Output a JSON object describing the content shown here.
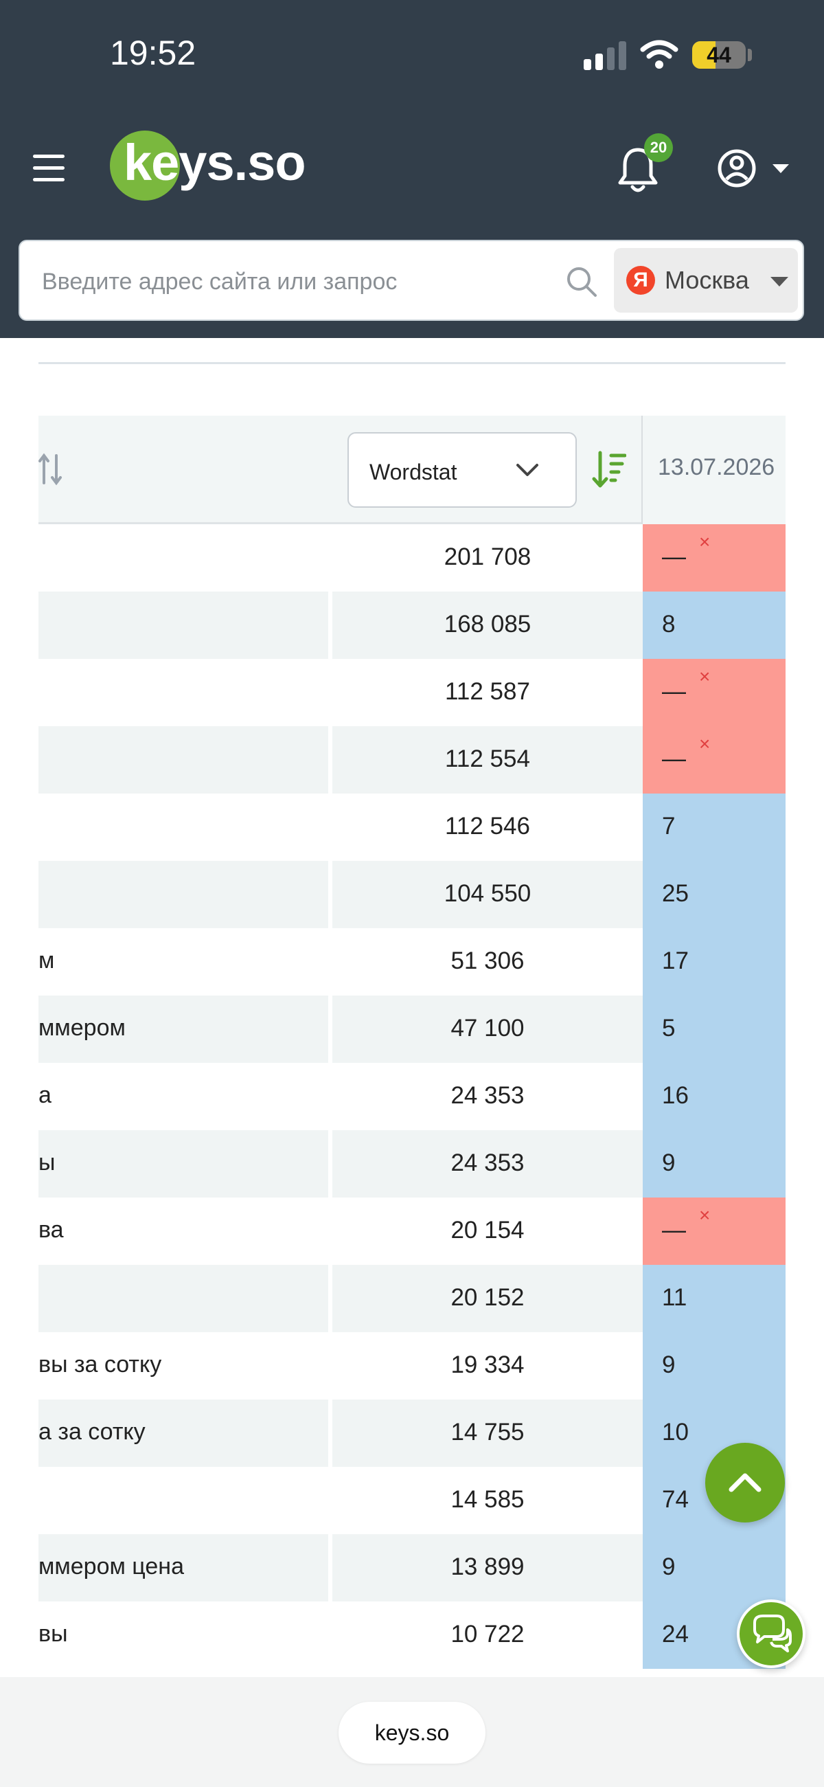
{
  "status_bar": {
    "time": "19:52",
    "battery": "44"
  },
  "header": {
    "logo_text": "keys.so",
    "notifications_count": "20"
  },
  "search": {
    "placeholder": "Введите адрес сайта или запрос",
    "region_badge": "Я",
    "region": "Москва"
  },
  "table": {
    "volume_select": "Wordstat",
    "date_column": "13.07.2026",
    "rows": [
      {
        "keyword": "",
        "volume": "201 708",
        "position": "—",
        "missing": true
      },
      {
        "keyword": "",
        "volume": "168 085",
        "position": "8",
        "missing": false
      },
      {
        "keyword": "",
        "volume": "112 587",
        "position": "—",
        "missing": true
      },
      {
        "keyword": "",
        "volume": "112 554",
        "position": "—",
        "missing": true
      },
      {
        "keyword": "",
        "volume": "112 546",
        "position": "7",
        "missing": false
      },
      {
        "keyword": "",
        "volume": "104 550",
        "position": "25",
        "missing": false
      },
      {
        "keyword": "м",
        "volume": "51 306",
        "position": "17",
        "missing": false
      },
      {
        "keyword": "ммером",
        "volume": "47 100",
        "position": "5",
        "missing": false
      },
      {
        "keyword": "а",
        "volume": "24 353",
        "position": "16",
        "missing": false
      },
      {
        "keyword": "ы",
        "volume": "24 353",
        "position": "9",
        "missing": false
      },
      {
        "keyword": "ва",
        "volume": "20 154",
        "position": "—",
        "missing": true
      },
      {
        "keyword": "",
        "volume": "20 152",
        "position": "11",
        "missing": false
      },
      {
        "keyword": "вы за сотку",
        "volume": "19 334",
        "position": "9",
        "missing": false
      },
      {
        "keyword": "а за сотку",
        "volume": "14 755",
        "position": "10",
        "missing": false
      },
      {
        "keyword": "",
        "volume": "14 585",
        "position": "74",
        "missing": false
      },
      {
        "keyword": "ммером цена",
        "volume": "13 899",
        "position": "9",
        "missing": false
      },
      {
        "keyword": "вы",
        "volume": "10 722",
        "position": "24",
        "missing": false
      }
    ],
    "missing_marker": "×"
  },
  "browser": {
    "url": "keys.so"
  },
  "colors": {
    "header_bg": "#323e4a",
    "brand_green": "#7ab83e",
    "position_ok": "#b1d4ee",
    "position_missing": "#fc9b93",
    "accent_green": "#69a820"
  }
}
